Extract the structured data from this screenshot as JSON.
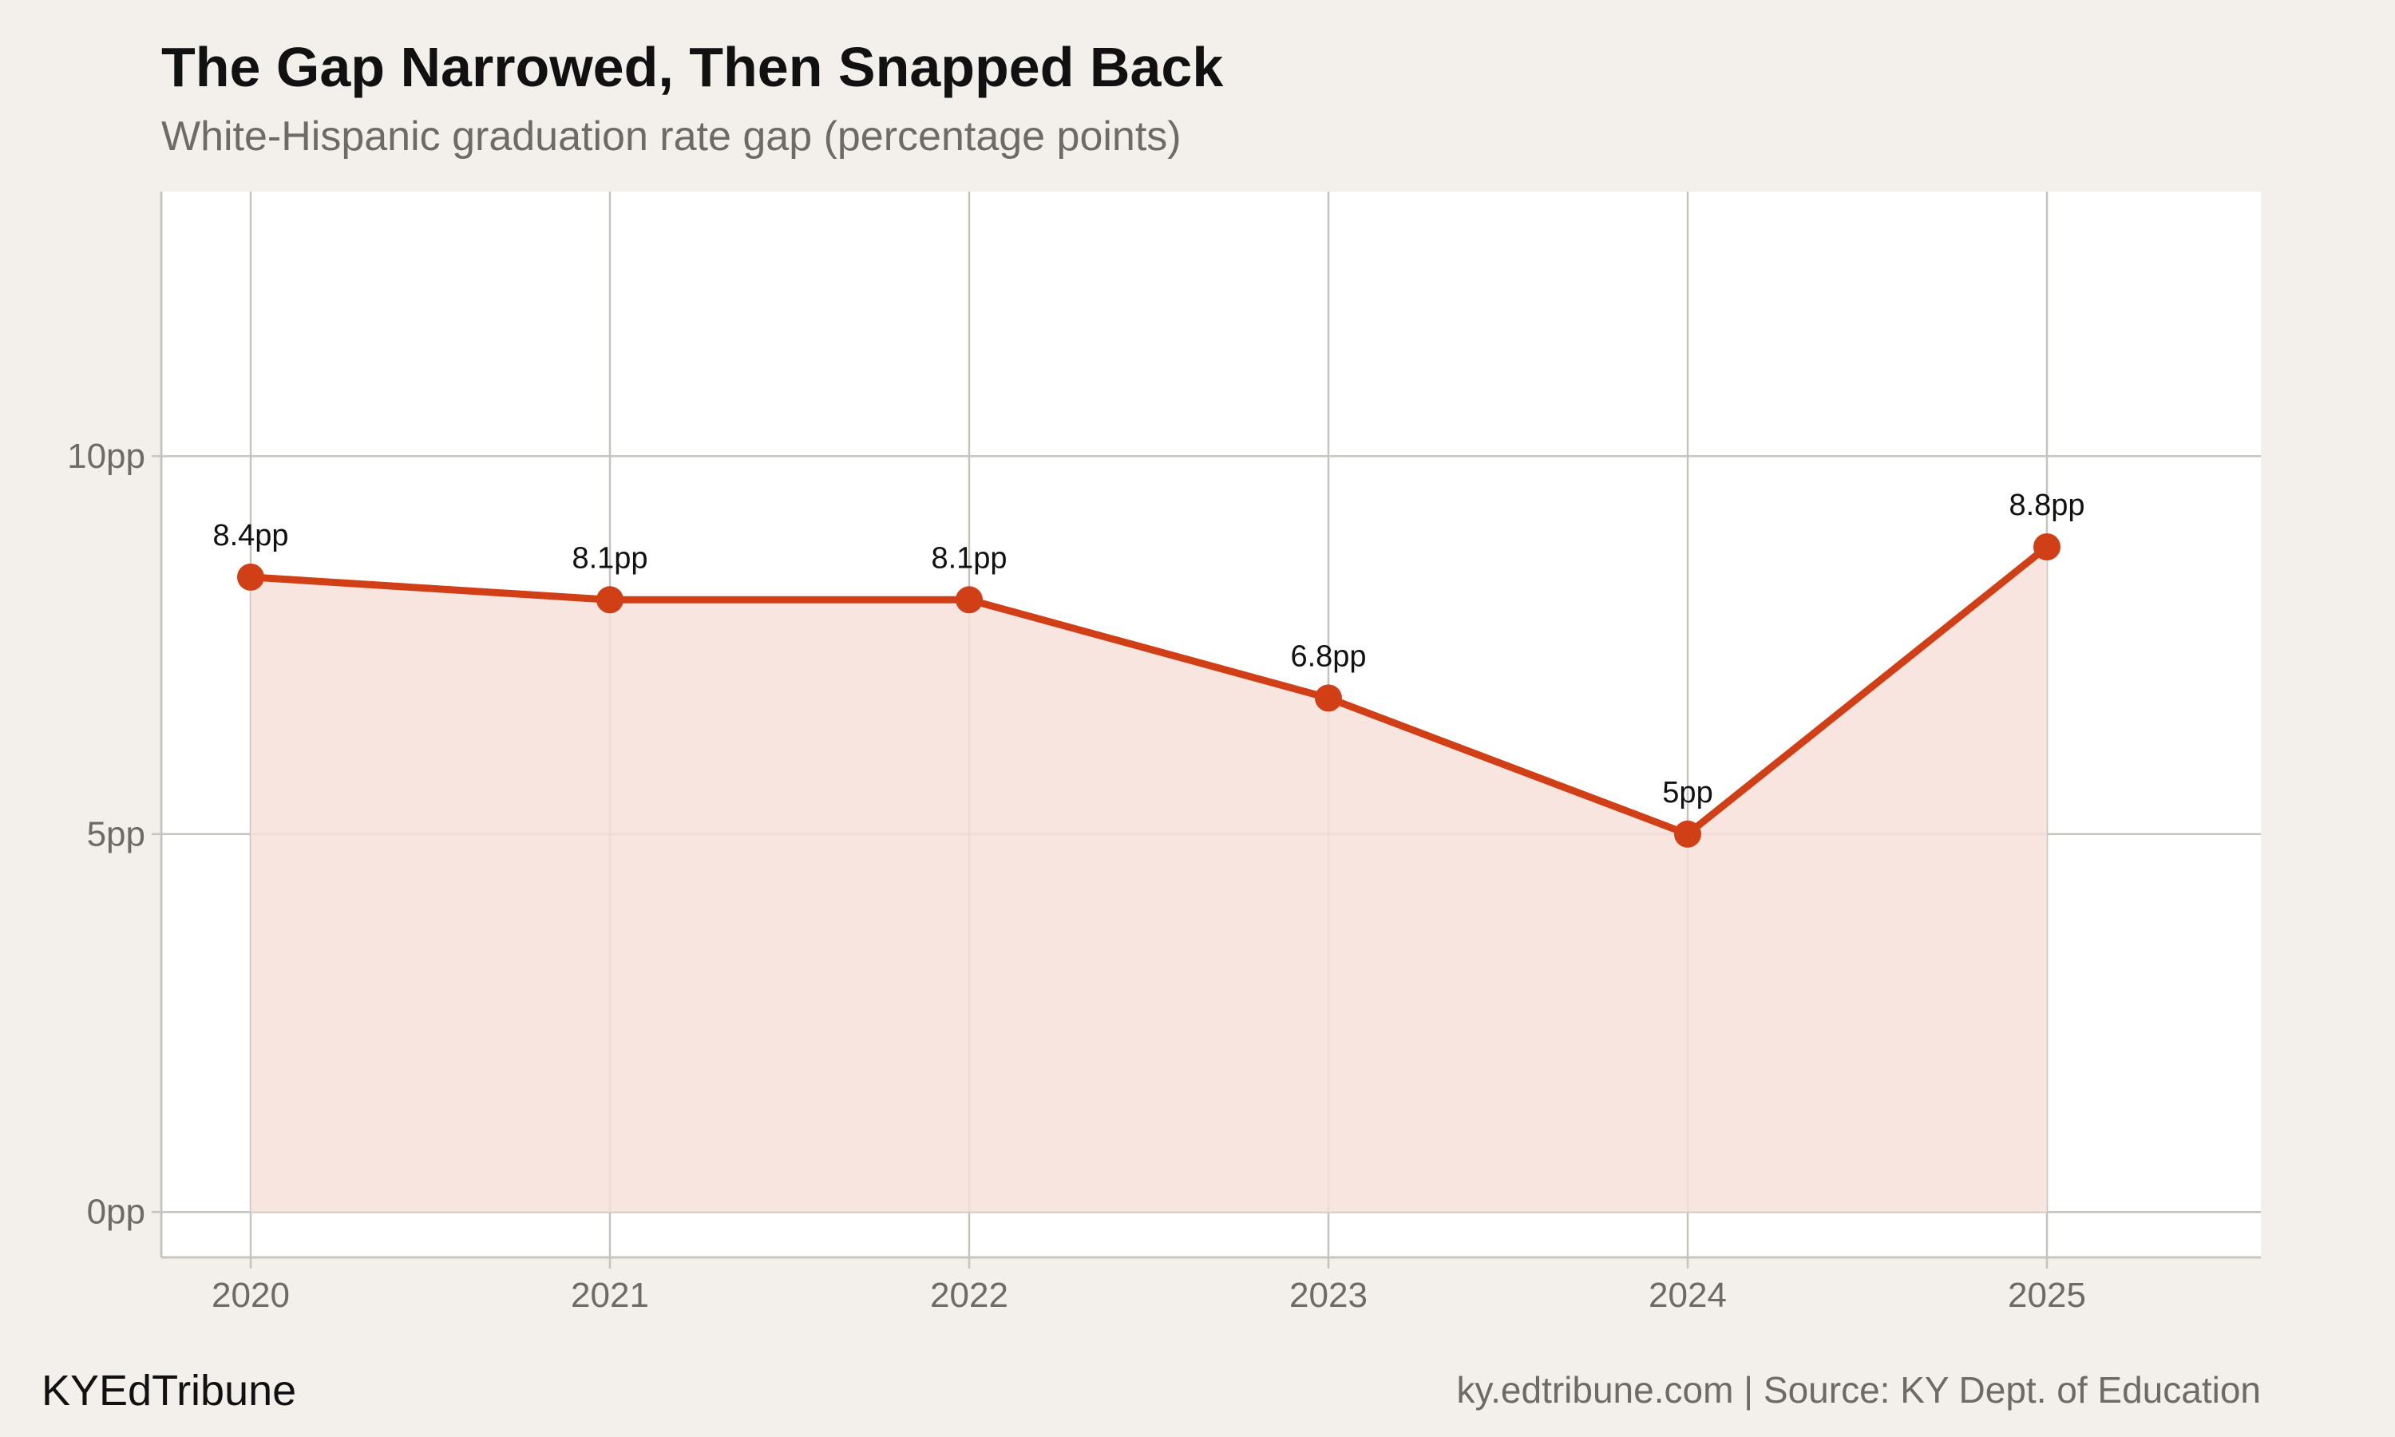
{
  "title": "The Gap Narrowed, Then Snapped Back",
  "subtitle": "White-Hispanic graduation rate gap (percentage points)",
  "brand": "KYEdTribune",
  "credit": "ky.edtribune.com | Source: KY Dept. of Education",
  "colors": {
    "background": "#f3f0eb",
    "plot_background": "#ffffff",
    "line": "#d13f16",
    "area_fill": "#f7e0da",
    "grid": "#c8c3bd",
    "tick_text": "#6e6a66"
  },
  "chart_data": {
    "type": "area",
    "categories": [
      "2020",
      "2021",
      "2022",
      "2023",
      "2024",
      "2025"
    ],
    "values": [
      8.4,
      8.1,
      8.1,
      6.8,
      5,
      8.8
    ],
    "data_labels": [
      "8.4pp",
      "8.1pp",
      "8.1pp",
      "6.8pp",
      "5pp",
      "8.8pp"
    ],
    "y_ticks": [
      0,
      5,
      10
    ],
    "y_tick_labels": [
      "0pp",
      "5pp",
      "10pp"
    ],
    "ylim": [
      -0.6,
      13.5
    ],
    "xlabel": "",
    "ylabel": "",
    "grid": true,
    "markers": true
  }
}
